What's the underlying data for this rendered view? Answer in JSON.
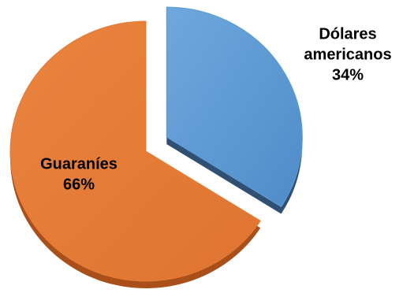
{
  "chart_data": {
    "type": "pie",
    "title": "",
    "slices": [
      {
        "name": "Guaraníes",
        "label_lines": [
          "Guaraníes"
        ],
        "value": 66,
        "value_label": "66%",
        "color": "#E47B37",
        "side_color": "#A94F1A",
        "exploded": false
      },
      {
        "name": "Dólares americanos",
        "label_lines": [
          "Dólares",
          "americanos"
        ],
        "value": 34,
        "value_label": "34%",
        "color": "#5B9BD5",
        "side_color": "#2F4F73",
        "exploded": true
      }
    ]
  }
}
